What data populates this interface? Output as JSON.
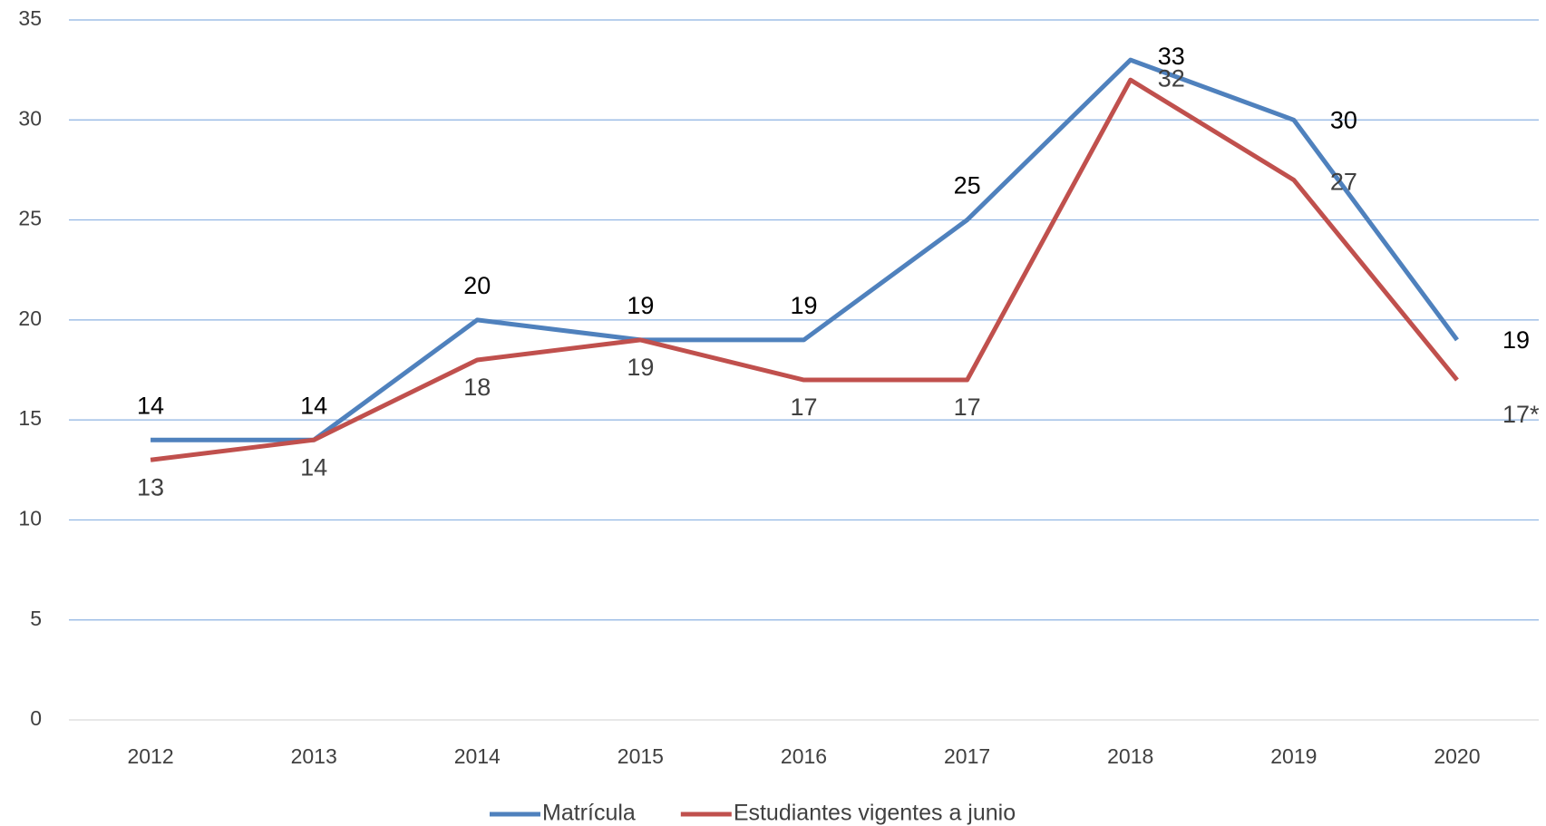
{
  "chart_data": {
    "type": "line",
    "categories": [
      "2012",
      "2013",
      "2014",
      "2015",
      "2016",
      "2017",
      "2018",
      "2019",
      "2020"
    ],
    "series": [
      {
        "name": "Matrícula",
        "color": "#4f81bd",
        "values": [
          14,
          14,
          20,
          19,
          19,
          25,
          33,
          30,
          19
        ]
      },
      {
        "name": "Estudiantes vigentes a junio",
        "color": "#c0504d",
        "values": [
          13,
          14,
          18,
          19,
          17,
          17,
          32,
          27,
          17
        ],
        "value_labels": [
          "13",
          "14",
          "18",
          "19",
          "17",
          "17",
          "32",
          "27",
          "17*"
        ]
      }
    ],
    "ylim": [
      0,
      35
    ],
    "yticks": [
      0,
      5,
      10,
      15,
      20,
      25,
      30,
      35
    ],
    "grid": true,
    "legend": "bottom"
  }
}
